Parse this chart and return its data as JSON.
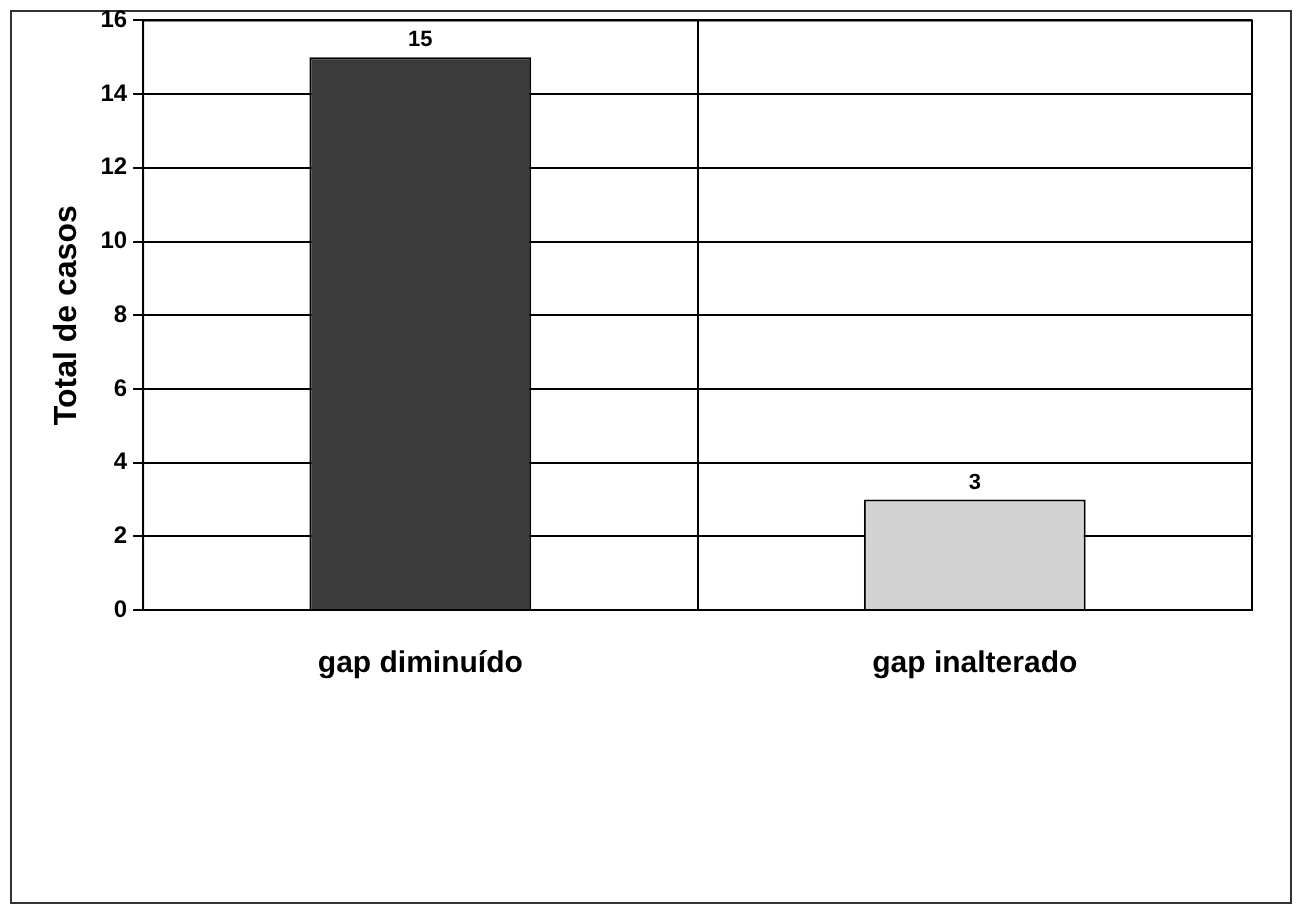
{
  "chart_data": {
    "type": "bar",
    "ylabel": "Total de casos",
    "categories": [
      "gap diminuído",
      "gap inalterado"
    ],
    "values": [
      15,
      3
    ],
    "colors": [
      "#3b3b3b",
      "#d3d3d3"
    ],
    "ylim": [
      0,
      16
    ],
    "yticks": [
      0,
      2,
      4,
      6,
      8,
      10,
      12,
      14,
      16
    ],
    "grid": true,
    "data_labels": true
  }
}
